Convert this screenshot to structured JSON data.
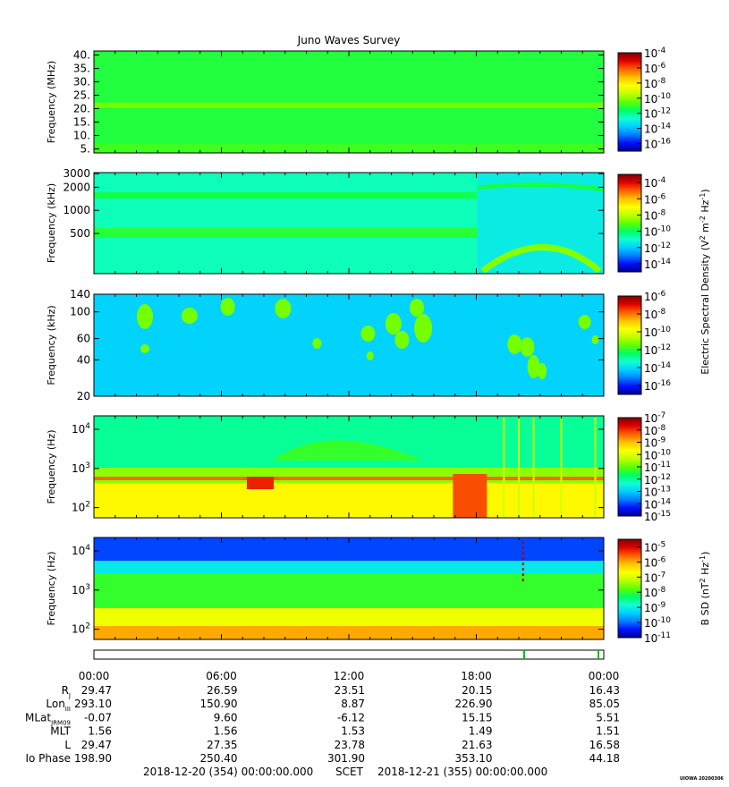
{
  "title": "Juno Waves Survey",
  "stamp": "UIOWA 20200306",
  "colors": {
    "jet": [
      "#000090",
      "#0010ff",
      "#0080ff",
      "#00d0ff",
      "#10ffd0",
      "#00ff60",
      "#60ff00",
      "#c0ff00",
      "#ffff00",
      "#ffc000",
      "#ff6000",
      "#e00000",
      "#800000"
    ]
  },
  "chart_data": [
    {
      "type": "heatmap",
      "panel": 1,
      "ylabel": "Frequency (MHz)",
      "yticks": [
        "40.",
        "35.",
        "30.",
        "25.",
        "20.",
        "15.",
        "10.",
        "5."
      ],
      "yvals": [
        40,
        35,
        30,
        25,
        20,
        15,
        10,
        5
      ],
      "ylim": [
        3.5,
        41.5
      ],
      "yscale": "linear",
      "colorbar_ticks": [
        "-4",
        "-6",
        "-8",
        "-10",
        "-12",
        "-14",
        "-16"
      ],
      "colorbar_base": "10",
      "colorbar_range": [
        -17,
        -4
      ],
      "background_level": -11.2,
      "features": [
        {
          "name": "band",
          "ymin": 20.3,
          "ymax": 22.3,
          "level": -10.3
        }
      ]
    },
    {
      "type": "heatmap",
      "panel": 2,
      "ylabel": "Frequency (kHz)",
      "yticks": [
        "3000",
        "2000",
        "1000",
        "500"
      ],
      "yvals": [
        3000,
        2000,
        1000,
        500
      ],
      "ylim": [
        150,
        3100
      ],
      "yscale": "log",
      "colorbar_ticks": [
        "-4",
        "-6",
        "-8",
        "-10",
        "-12",
        "-14"
      ],
      "colorbar_base": "10",
      "colorbar_range": [
        -15,
        -3
      ],
      "background_level": -10.8
    },
    {
      "type": "heatmap",
      "panel": 3,
      "ylabel": "Frequency (kHz)",
      "yticks": [
        "140",
        "100",
        "60",
        "40",
        "20"
      ],
      "yvals": [
        140,
        100,
        60,
        40,
        20
      ],
      "ylim": [
        20,
        140
      ],
      "yscale": "log",
      "colorbar_ticks": [
        "-6",
        "-8",
        "-10",
        "-12",
        "-14",
        "-16"
      ],
      "colorbar_base": "10",
      "colorbar_range": [
        -17,
        -6
      ],
      "background_level": -14.2
    },
    {
      "type": "heatmap",
      "panel": 4,
      "ylabel": "Frequency (Hz)",
      "yticks": [
        "4",
        "3",
        "2"
      ],
      "ytick_base": "10",
      "yvals": [
        10000,
        1000,
        100
      ],
      "ylim": [
        55,
        22000
      ],
      "yscale": "log",
      "colorbar_ticks": [
        "-7",
        "-8",
        "-9",
        "-10",
        "-11",
        "-12",
        "-13",
        "-14",
        "-15"
      ],
      "colorbar_base": "10",
      "colorbar_range": [
        -15,
        -7
      ],
      "background_level": -12
    },
    {
      "type": "heatmap",
      "panel": 5,
      "ylabel": "Frequency (Hz)",
      "yticks": [
        "4",
        "3",
        "2"
      ],
      "ytick_base": "10",
      "yvals": [
        10000,
        1000,
        100
      ],
      "ylim": [
        55,
        22000
      ],
      "yscale": "log",
      "colorbar_ticks": [
        "-5",
        "-6",
        "-7",
        "-8",
        "-9",
        "-10",
        "-11"
      ],
      "colorbar_base": "10",
      "colorbar_range": [
        -11,
        -4.5
      ],
      "background_level": -8
    }
  ],
  "colorbar_labels": {
    "e": "Electric Spectral Density (V",
    "e_sup1": "2",
    "e_mid": " m",
    "e_sup2": "-2",
    "e_mid2": " Hz",
    "e_sup3": "-1",
    "e_end": ")",
    "b": "B SD (nT",
    "b_sup1": "2",
    "b_mid": " Hz",
    "b_sup2": "-1",
    "b_end": ")"
  },
  "time_axis": {
    "labels": [
      "00:00",
      "06:00",
      "12:00",
      "18:00",
      "00:00"
    ],
    "hours": [
      0,
      6,
      12,
      18,
      24
    ],
    "minor_every_hours": 1
  },
  "ephemeris": {
    "rows": [
      {
        "label": "R",
        "sub": "J",
        "values": [
          "29.47",
          "26.59",
          "23.51",
          "20.15",
          "16.43"
        ]
      },
      {
        "label": "Lon",
        "sub": "III",
        "values": [
          "293.10",
          "150.90",
          "8.87",
          "226.90",
          "85.05"
        ]
      },
      {
        "label": "MLat",
        "sub": "JRM09",
        "values": [
          "-0.07",
          "9.60",
          "-6.12",
          "15.15",
          "5.51"
        ]
      },
      {
        "label": "MLT",
        "sub": "",
        "values": [
          "1.56",
          "1.56",
          "1.53",
          "1.49",
          "1.51"
        ]
      },
      {
        "label": "L",
        "sub": "",
        "values": [
          "29.47",
          "27.35",
          "23.78",
          "21.63",
          "16.58"
        ]
      },
      {
        "label": "Io Phase",
        "sub": "",
        "values": [
          "198.90",
          "250.40",
          "301.90",
          "353.10",
          "44.18"
        ]
      }
    ]
  },
  "footer": {
    "start": "2018-12-20 (354) 00:00:00.000",
    "scet": "SCET",
    "end": "2018-12-21 (355) 00:00:00.000"
  }
}
